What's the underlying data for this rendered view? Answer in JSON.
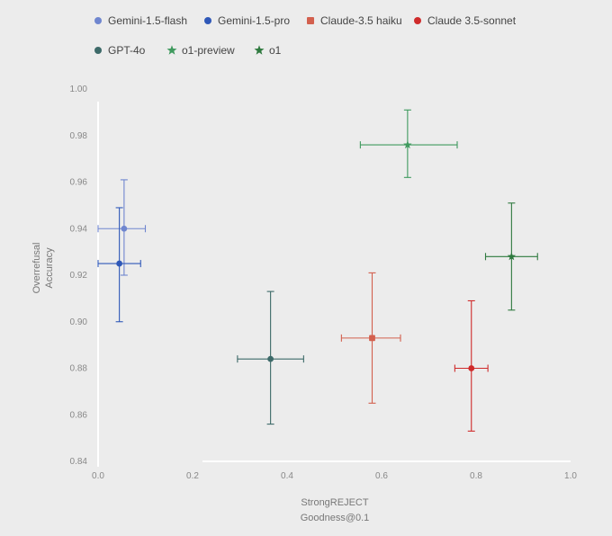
{
  "chart_data": {
    "type": "scatter",
    "xlabel_lines": [
      "StrongREJECT",
      "Goodness@0.1"
    ],
    "ylabel_lines": [
      "Overrefusal",
      "Accuracy"
    ],
    "xlim": [
      0.0,
      1.0
    ],
    "ylim": [
      0.84,
      1.0
    ],
    "x_ticks": [
      0.0,
      0.2,
      0.4,
      0.6,
      0.8,
      1.0
    ],
    "x_tick_labels": [
      "0.0",
      "0.2",
      "0.4",
      "0.6",
      "0.8",
      "1.0"
    ],
    "y_ticks": [
      0.84,
      0.86,
      0.88,
      0.9,
      0.92,
      0.94,
      0.96,
      0.98,
      1.0
    ],
    "y_tick_labels": [
      "0.84",
      "0.86",
      "0.88",
      "0.90",
      "0.92",
      "0.94",
      "0.96",
      "0.98",
      "1.00"
    ],
    "legend_position": "top",
    "grid": false,
    "series": [
      {
        "name": "Gemini-1.5-flash",
        "color": "#6f86cf",
        "marker": "circle",
        "x": 0.055,
        "y": 0.94,
        "x_err": [
          0.0,
          0.1
        ],
        "y_err": [
          0.92,
          0.961
        ]
      },
      {
        "name": "Gemini-1.5-pro",
        "color": "#2f58b8",
        "marker": "circle",
        "x": 0.045,
        "y": 0.925,
        "x_err": [
          0.0,
          0.09
        ],
        "y_err": [
          0.9,
          0.949
        ]
      },
      {
        "name": "Claude-3.5 haiku",
        "color": "#d3604e",
        "marker": "square",
        "x": 0.58,
        "y": 0.893,
        "x_err": [
          0.515,
          0.64
        ],
        "y_err": [
          0.865,
          0.921
        ]
      },
      {
        "name": "Claude 3.5-sonnet",
        "color": "#cf2b2b",
        "marker": "circle",
        "x": 0.79,
        "y": 0.88,
        "x_err": [
          0.755,
          0.825
        ],
        "y_err": [
          0.853,
          0.909
        ]
      },
      {
        "name": "GPT-4o",
        "color": "#3d6a69",
        "marker": "circle",
        "x": 0.365,
        "y": 0.884,
        "x_err": [
          0.295,
          0.435
        ],
        "y_err": [
          0.856,
          0.913
        ]
      },
      {
        "name": "o1-preview",
        "color": "#3f9a5e",
        "marker": "star",
        "x": 0.655,
        "y": 0.976,
        "x_err": [
          0.555,
          0.76
        ],
        "y_err": [
          0.962,
          0.991
        ]
      },
      {
        "name": "o1",
        "color": "#2f7a3f",
        "marker": "star",
        "x": 0.875,
        "y": 0.928,
        "x_err": [
          0.82,
          0.93
        ],
        "y_err": [
          0.905,
          0.951
        ]
      }
    ]
  }
}
